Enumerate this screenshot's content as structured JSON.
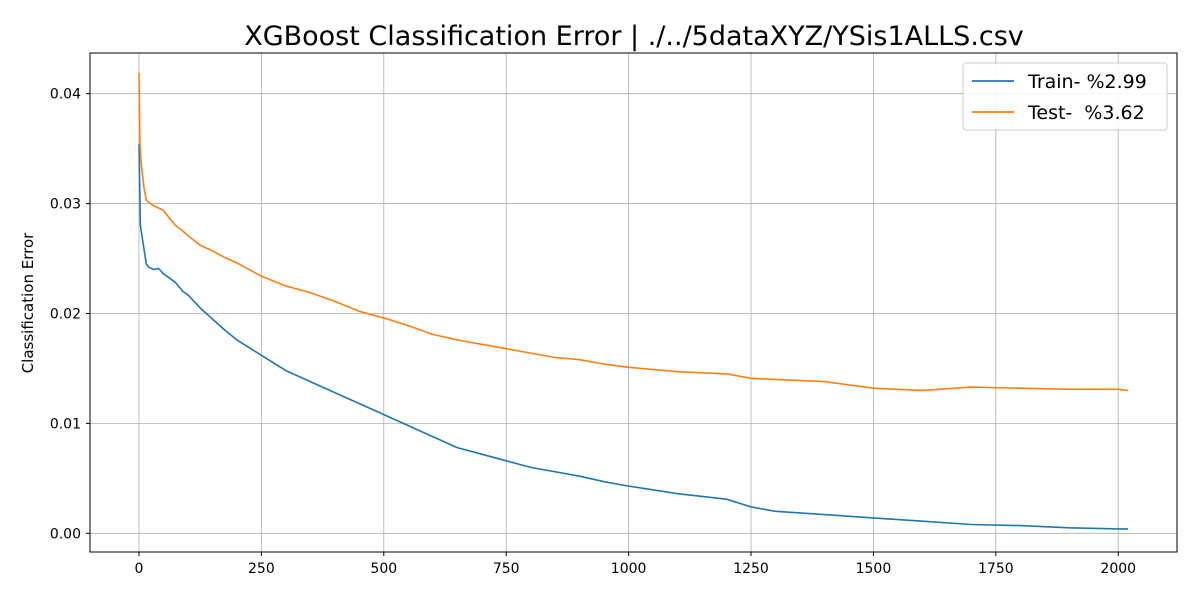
{
  "chart_data": {
    "type": "line",
    "title": "XGBoost Classification Error | ./../5dataXYZ/YSis1ALLS.csv",
    "xlabel": "",
    "ylabel": "Classification Error",
    "xlim": [
      -100,
      2120
    ],
    "ylim": [
      -0.0017,
      0.0437
    ],
    "xticks": [
      0,
      250,
      500,
      750,
      1000,
      1250,
      1500,
      1750,
      2000
    ],
    "xtick_labels": [
      "0",
      "250",
      "500",
      "750",
      "1000",
      "1250",
      "1500",
      "1750",
      "2000"
    ],
    "yticks": [
      0.0,
      0.01,
      0.02,
      0.03,
      0.04
    ],
    "ytick_labels": [
      "0.00",
      "0.01",
      "0.02",
      "0.03",
      "0.04"
    ],
    "grid": true,
    "legend_position": "top-right",
    "series": [
      {
        "name": "Train- %2.99",
        "color": "#1f77b4",
        "x": [
          0,
          3,
          8,
          15,
          20,
          30,
          40,
          50,
          60,
          75,
          90,
          100,
          125,
          150,
          175,
          200,
          250,
          300,
          350,
          400,
          450,
          500,
          550,
          600,
          650,
          700,
          750,
          800,
          900,
          950,
          1000,
          1100,
          1200,
          1250,
          1300,
          1400,
          1500,
          1600,
          1700,
          1800,
          1900,
          2000,
          2020
        ],
        "y": [
          0.0354,
          0.028,
          0.0265,
          0.0245,
          0.0242,
          0.024,
          0.0241,
          0.0236,
          0.0233,
          0.0228,
          0.022,
          0.0217,
          0.0205,
          0.0195,
          0.0185,
          0.0176,
          0.0162,
          0.0148,
          0.0138,
          0.0128,
          0.0118,
          0.0108,
          0.0098,
          0.0088,
          0.0078,
          0.0072,
          0.0066,
          0.006,
          0.0052,
          0.0047,
          0.0043,
          0.0036,
          0.0031,
          0.0024,
          0.002,
          0.0017,
          0.0014,
          0.0011,
          0.0008,
          0.0007,
          0.0005,
          0.0004,
          0.0004
        ]
      },
      {
        "name": "Test-  %3.62",
        "color": "#ff7f0e",
        "x": [
          0,
          2,
          5,
          10,
          15,
          20,
          30,
          40,
          50,
          60,
          75,
          90,
          100,
          125,
          150,
          175,
          200,
          250,
          300,
          350,
          400,
          450,
          500,
          550,
          600,
          650,
          700,
          750,
          800,
          850,
          900,
          950,
          1000,
          1100,
          1200,
          1250,
          1300,
          1400,
          1500,
          1550,
          1600,
          1700,
          1800,
          1900,
          2000,
          2020
        ],
        "y": [
          0.0419,
          0.0355,
          0.0335,
          0.0315,
          0.0303,
          0.0301,
          0.0298,
          0.0296,
          0.0294,
          0.0288,
          0.028,
          0.0275,
          0.0271,
          0.0262,
          0.0257,
          0.0251,
          0.0246,
          0.0234,
          0.0225,
          0.0219,
          0.0211,
          0.0202,
          0.0196,
          0.0189,
          0.0181,
          0.0176,
          0.0172,
          0.0168,
          0.0164,
          0.016,
          0.0158,
          0.0154,
          0.0151,
          0.0147,
          0.0145,
          0.0141,
          0.014,
          0.0138,
          0.0132,
          0.0131,
          0.013,
          0.0133,
          0.0132,
          0.0131,
          0.0131,
          0.013
        ]
      }
    ]
  }
}
